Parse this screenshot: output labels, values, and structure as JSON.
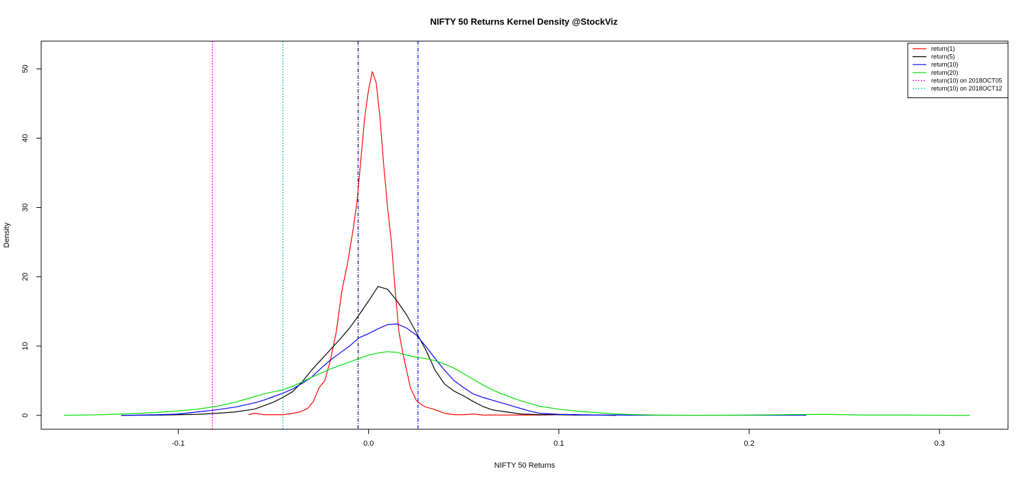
{
  "chart_data": {
    "type": "line",
    "title": "NIFTY 50 Returns Kernel Density @StockViz",
    "xlabel": "NIFTY 50 Returns",
    "ylabel": "Density",
    "xlim": [
      -0.172,
      0.336
    ],
    "ylim": [
      -2,
      54
    ],
    "x_ticks": [
      -0.1,
      0.0,
      0.1,
      0.2,
      0.3
    ],
    "x_tick_labels": [
      "-0.1",
      "0.0",
      "0.1",
      "0.2",
      "0.3"
    ],
    "y_ticks": [
      0,
      10,
      20,
      30,
      40,
      50
    ],
    "y_tick_labels": [
      "0",
      "10",
      "20",
      "30",
      "40",
      "50"
    ],
    "legend_position": "top-right",
    "series": [
      {
        "name": "return(1)",
        "color": "#ff0000",
        "dash": "",
        "points": [
          [
            -0.063,
            0.1
          ],
          [
            -0.06,
            0.3
          ],
          [
            -0.055,
            0.1
          ],
          [
            -0.05,
            0.1
          ],
          [
            -0.045,
            0.1
          ],
          [
            -0.04,
            0.3
          ],
          [
            -0.036,
            0.5
          ],
          [
            -0.032,
            1.0
          ],
          [
            -0.029,
            2.0
          ],
          [
            -0.026,
            4.0
          ],
          [
            -0.023,
            5.0
          ],
          [
            -0.02,
            8.0
          ],
          [
            -0.017,
            12.0
          ],
          [
            -0.014,
            18.0
          ],
          [
            -0.011,
            22.0
          ],
          [
            -0.008,
            27.0
          ],
          [
            -0.006,
            31.0
          ],
          [
            -0.004,
            37.0
          ],
          [
            -0.002,
            43.0
          ],
          [
            0.0,
            47.0
          ],
          [
            0.002,
            49.6
          ],
          [
            0.004,
            48.0
          ],
          [
            0.006,
            43.0
          ],
          [
            0.008,
            36.0
          ],
          [
            0.01,
            30.0
          ],
          [
            0.012,
            25.0
          ],
          [
            0.014,
            18.0
          ],
          [
            0.016,
            12.0
          ],
          [
            0.018,
            9.0
          ],
          [
            0.02,
            6.5
          ],
          [
            0.022,
            4.0
          ],
          [
            0.025,
            2.2
          ],
          [
            0.028,
            1.5
          ],
          [
            0.03,
            1.2
          ],
          [
            0.033,
            1.0
          ],
          [
            0.037,
            0.6
          ],
          [
            0.04,
            0.3
          ],
          [
            0.045,
            0.1
          ],
          [
            0.05,
            0.1
          ],
          [
            0.055,
            0.2
          ],
          [
            0.06,
            0.05
          ],
          [
            0.07,
            0.05
          ],
          [
            0.08,
            0.05
          ],
          [
            0.09,
            0.05
          ],
          [
            0.1,
            0.1
          ],
          [
            0.11,
            0.05
          ]
        ]
      },
      {
        "name": "return(5)",
        "color": "#000000",
        "dash": "",
        "points": [
          [
            -0.13,
            0.0
          ],
          [
            -0.11,
            0.05
          ],
          [
            -0.1,
            0.1
          ],
          [
            -0.09,
            0.15
          ],
          [
            -0.08,
            0.3
          ],
          [
            -0.07,
            0.5
          ],
          [
            -0.06,
            0.9
          ],
          [
            -0.05,
            1.9
          ],
          [
            -0.045,
            2.6
          ],
          [
            -0.04,
            3.4
          ],
          [
            -0.035,
            4.8
          ],
          [
            -0.03,
            6.5
          ],
          [
            -0.025,
            8.0
          ],
          [
            -0.02,
            9.5
          ],
          [
            -0.015,
            11.0
          ],
          [
            -0.01,
            12.6
          ],
          [
            -0.005,
            14.5
          ],
          [
            0.0,
            16.5
          ],
          [
            0.005,
            18.6
          ],
          [
            0.01,
            18.2
          ],
          [
            0.015,
            16.5
          ],
          [
            0.02,
            14.5
          ],
          [
            0.025,
            12.0
          ],
          [
            0.03,
            9.5
          ],
          [
            0.035,
            6.5
          ],
          [
            0.04,
            4.5
          ],
          [
            0.045,
            3.5
          ],
          [
            0.05,
            2.8
          ],
          [
            0.055,
            2.0
          ],
          [
            0.06,
            1.3
          ],
          [
            0.065,
            0.8
          ],
          [
            0.07,
            0.6
          ],
          [
            0.075,
            0.4
          ],
          [
            0.08,
            0.2
          ],
          [
            0.09,
            0.1
          ],
          [
            0.1,
            0.1
          ],
          [
            0.11,
            0.05
          ],
          [
            0.12,
            0.05
          ],
          [
            0.13,
            0.0
          ]
        ]
      },
      {
        "name": "return(10)",
        "color": "#0000ff",
        "dash": "",
        "points": [
          [
            -0.13,
            0.0
          ],
          [
            -0.11,
            0.1
          ],
          [
            -0.1,
            0.2
          ],
          [
            -0.09,
            0.5
          ],
          [
            -0.08,
            0.8
          ],
          [
            -0.07,
            1.2
          ],
          [
            -0.06,
            1.8
          ],
          [
            -0.055,
            2.2
          ],
          [
            -0.05,
            2.7
          ],
          [
            -0.045,
            3.2
          ],
          [
            -0.04,
            3.8
          ],
          [
            -0.035,
            4.6
          ],
          [
            -0.03,
            5.5
          ],
          [
            -0.025,
            6.8
          ],
          [
            -0.02,
            8.0
          ],
          [
            -0.015,
            9.0
          ],
          [
            -0.01,
            10.0
          ],
          [
            -0.005,
            11.2
          ],
          [
            0.0,
            11.8
          ],
          [
            0.005,
            12.5
          ],
          [
            0.01,
            13.1
          ],
          [
            0.015,
            13.2
          ],
          [
            0.02,
            12.6
          ],
          [
            0.025,
            11.6
          ],
          [
            0.03,
            10.0
          ],
          [
            0.035,
            8.2
          ],
          [
            0.04,
            6.5
          ],
          [
            0.045,
            5.0
          ],
          [
            0.05,
            4.0
          ],
          [
            0.055,
            3.1
          ],
          [
            0.06,
            2.6
          ],
          [
            0.065,
            2.2
          ],
          [
            0.07,
            1.8
          ],
          [
            0.075,
            1.4
          ],
          [
            0.08,
            1.0
          ],
          [
            0.085,
            0.6
          ],
          [
            0.09,
            0.3
          ],
          [
            0.1,
            0.15
          ],
          [
            0.11,
            0.1
          ],
          [
            0.12,
            0.05
          ],
          [
            0.13,
            0.05
          ],
          [
            0.14,
            0.02
          ],
          [
            0.15,
            0.02
          ],
          [
            0.17,
            0.02
          ],
          [
            0.19,
            0.02
          ],
          [
            0.21,
            0.02
          ],
          [
            0.23,
            0.02
          ]
        ]
      },
      {
        "name": "return(20)",
        "color": "#00dd00",
        "dash": "",
        "points": [
          [
            -0.16,
            0.02
          ],
          [
            -0.15,
            0.05
          ],
          [
            -0.14,
            0.1
          ],
          [
            -0.13,
            0.2
          ],
          [
            -0.12,
            0.3
          ],
          [
            -0.11,
            0.45
          ],
          [
            -0.1,
            0.65
          ],
          [
            -0.09,
            0.9
          ],
          [
            -0.08,
            1.3
          ],
          [
            -0.07,
            1.9
          ],
          [
            -0.06,
            2.7
          ],
          [
            -0.055,
            3.1
          ],
          [
            -0.05,
            3.4
          ],
          [
            -0.045,
            3.7
          ],
          [
            -0.04,
            4.2
          ],
          [
            -0.035,
            4.8
          ],
          [
            -0.03,
            5.5
          ],
          [
            -0.025,
            6.1
          ],
          [
            -0.02,
            6.7
          ],
          [
            -0.015,
            7.2
          ],
          [
            -0.01,
            7.7
          ],
          [
            -0.005,
            8.2
          ],
          [
            0.0,
            8.7
          ],
          [
            0.005,
            9.0
          ],
          [
            0.01,
            9.2
          ],
          [
            0.015,
            9.1
          ],
          [
            0.02,
            8.7
          ],
          [
            0.025,
            8.4
          ],
          [
            0.03,
            8.2
          ],
          [
            0.035,
            7.9
          ],
          [
            0.04,
            7.4
          ],
          [
            0.045,
            6.8
          ],
          [
            0.05,
            6.0
          ],
          [
            0.055,
            5.2
          ],
          [
            0.06,
            4.4
          ],
          [
            0.065,
            3.7
          ],
          [
            0.07,
            3.1
          ],
          [
            0.075,
            2.6
          ],
          [
            0.08,
            2.1
          ],
          [
            0.085,
            1.7
          ],
          [
            0.09,
            1.3
          ],
          [
            0.1,
            0.9
          ],
          [
            0.11,
            0.6
          ],
          [
            0.12,
            0.4
          ],
          [
            0.13,
            0.2
          ],
          [
            0.14,
            0.1
          ],
          [
            0.15,
            0.05
          ],
          [
            0.17,
            0.02
          ],
          [
            0.2,
            0.05
          ],
          [
            0.22,
            0.1
          ],
          [
            0.24,
            0.15
          ],
          [
            0.26,
            0.05
          ],
          [
            0.28,
            0.05
          ],
          [
            0.3,
            0.02
          ],
          [
            0.316,
            0.0
          ]
        ]
      }
    ],
    "vlines": [
      {
        "name": "return(10) on 2018OCT05",
        "x": -0.082,
        "color": "#ff00ff",
        "dash": "2,2"
      },
      {
        "name": "return(10) on 2018OCT12",
        "x": -0.045,
        "color": "#00cccc",
        "dash": "2,2"
      },
      {
        "x": -0.0055,
        "color": "#00008b",
        "dash": "5,2,1,2"
      },
      {
        "x": 0.026,
        "color": "#0000ff",
        "dash": "5,2,1,2"
      }
    ],
    "legend": [
      {
        "label": "return(1)",
        "color": "#ff0000",
        "dash": ""
      },
      {
        "label": "return(5)",
        "color": "#000000",
        "dash": ""
      },
      {
        "label": "return(10)",
        "color": "#0000ff",
        "dash": ""
      },
      {
        "label": "return(20)",
        "color": "#00dd00",
        "dash": ""
      },
      {
        "label": "return(10) on 2018OCT05",
        "color": "#ff00ff",
        "dash": "2,2"
      },
      {
        "label": "return(10) on 2018OCT12",
        "color": "#00cccc",
        "dash": "2,2"
      }
    ]
  }
}
